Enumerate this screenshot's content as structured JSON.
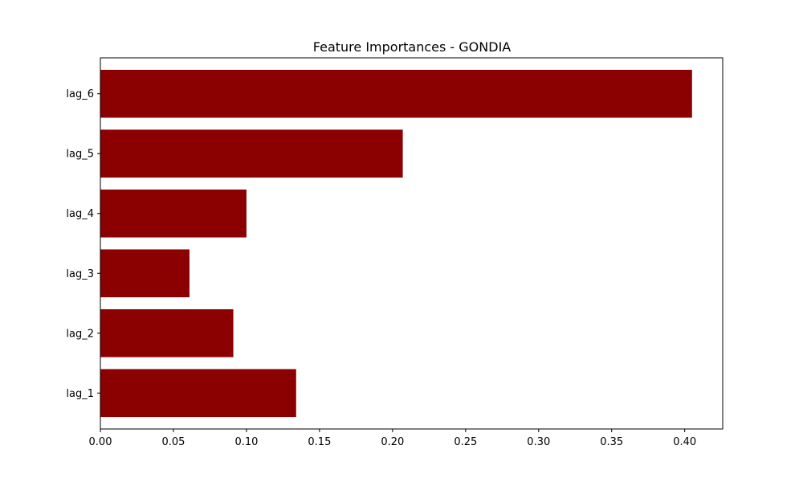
{
  "chart_data": {
    "type": "bar",
    "orientation": "horizontal",
    "title": "Feature Importances - GONDIA",
    "xlabel": "",
    "ylabel": "",
    "categories": [
      "lag_1",
      "lag_2",
      "lag_3",
      "lag_4",
      "lag_5",
      "lag_6"
    ],
    "values": [
      0.134,
      0.091,
      0.061,
      0.1,
      0.207,
      0.405
    ],
    "xlim": [
      0.0,
      0.426
    ],
    "xticks": [
      "0.00",
      "0.05",
      "0.10",
      "0.15",
      "0.20",
      "0.25",
      "0.30",
      "0.35",
      "0.40"
    ],
    "bar_color": "#8b0000",
    "grid": false,
    "legend": "none"
  }
}
